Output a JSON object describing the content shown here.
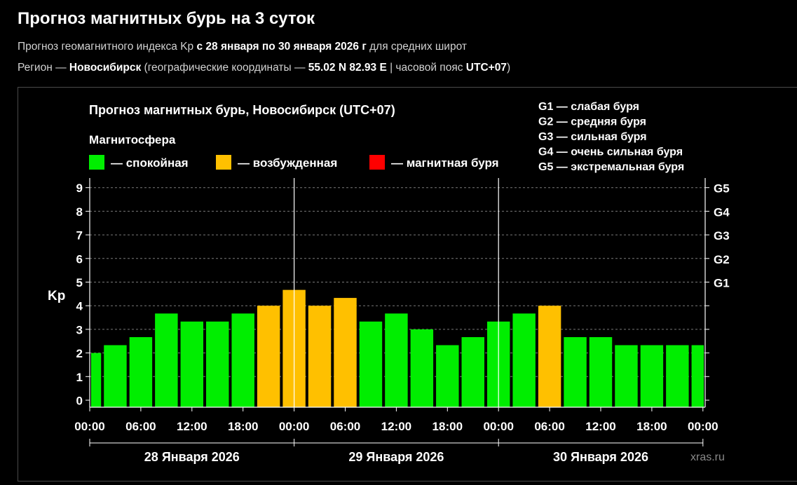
{
  "page": {
    "title": "Прогноз магнитных бурь на 3 суток",
    "subtitle_1": {
      "prefix": "Прогноз геомагнитного индекса Kp ",
      "period": "с 28 января по 30 января 2026 г",
      "suffix": " для средних широт"
    },
    "subtitle_2": {
      "prefix": "Регион — ",
      "region": "Новосибирск",
      "middle": " (географические координаты — ",
      "coords": "55.02 N 82.93 E",
      "middle2": " | часовой пояс ",
      "tz": "UTC+07",
      "suffix": ")"
    }
  },
  "chart_data": {
    "type": "bar",
    "title": "Прогноз магнитных бурь, Новосибирск (UTC+07)",
    "ylabel": "Kp",
    "ylim": [
      0,
      9
    ],
    "yticks": [
      "0",
      "1",
      "2",
      "3",
      "4",
      "5",
      "6",
      "7",
      "8",
      "9"
    ],
    "right_ticks": [
      {
        "value": 5,
        "label": "G1"
      },
      {
        "value": 6,
        "label": "G2"
      },
      {
        "value": 7,
        "label": "G3"
      },
      {
        "value": 8,
        "label": "G4"
      },
      {
        "value": 9,
        "label": "G5"
      }
    ],
    "x_tick_labels": [
      "00:00",
      "06:00",
      "12:00",
      "18:00",
      "00:00",
      "06:00",
      "12:00",
      "18:00",
      "00:00",
      "06:00",
      "12:00",
      "18:00",
      "00:00"
    ],
    "days": [
      "28 Января 2026",
      "29 Января 2026",
      "30 Января 2026"
    ],
    "values": [
      2.0,
      2.33,
      2.67,
      3.67,
      3.33,
      3.33,
      3.67,
      4.0,
      4.67,
      4.0,
      4.33,
      3.33,
      3.67,
      3.0,
      2.33,
      2.67,
      3.33,
      3.67,
      4.0,
      2.67,
      2.67,
      2.33,
      2.33,
      2.33,
      2.33
    ],
    "legend_title": "Магнитосфера",
    "legend": [
      {
        "label": "— спокойная",
        "color": "#00ee00"
      },
      {
        "label": "— возбужденная",
        "color": "#ffc000"
      },
      {
        "label": "— магнитная буря",
        "color": "#ff0000"
      }
    ],
    "g_legend": [
      "G1 — слабая буря",
      "G2 — средняя буря",
      "G3 — сильная буря",
      "G4 — очень сильная буря",
      "G5 — экстремальная буря"
    ],
    "grid": true,
    "watermark": "xras.ru"
  }
}
